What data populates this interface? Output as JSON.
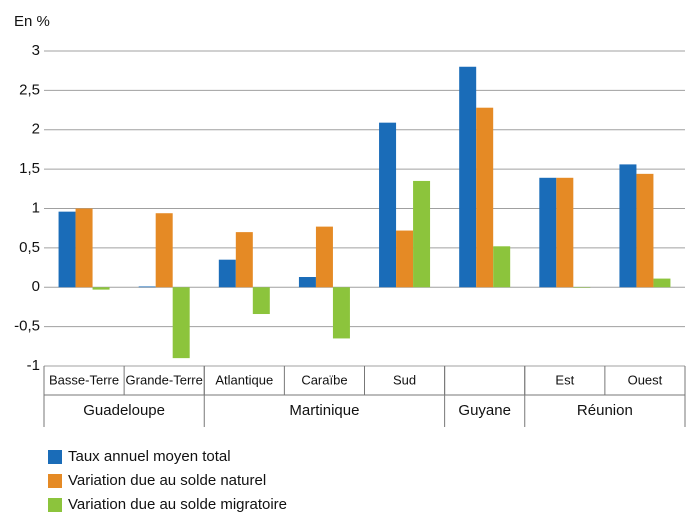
{
  "chart_data": {
    "type": "bar",
    "y_label": "En %",
    "categories": [
      "Basse-Terre",
      "Grande-Terre",
      "Atlantique",
      "Caraïbe",
      "Sud",
      null,
      "Est",
      "Ouest"
    ],
    "groups": [
      {
        "name": "Guadeloupe",
        "size": 2
      },
      {
        "name": "Martinique",
        "size": 3
      },
      {
        "name": "Guyane",
        "size": 1
      },
      {
        "name": "Réunion",
        "size": 2
      }
    ],
    "series": [
      {
        "name": "Taux annuel moyen total",
        "color": "#1a6cb8",
        "values": [
          0.96,
          0.01,
          0.35,
          0.13,
          2.09,
          2.8,
          1.39,
          1.56
        ]
      },
      {
        "name": "Variation due au solde naturel",
        "color": "#e58a25",
        "values": [
          1.0,
          0.94,
          0.7,
          0.77,
          0.72,
          2.28,
          1.39,
          1.44
        ]
      },
      {
        "name": "Variation due au solde migratoire",
        "color": "#8cc43c",
        "values": [
          -0.03,
          -0.9,
          -0.34,
          -0.65,
          1.35,
          0.52,
          0,
          0.11
        ]
      }
    ],
    "ylim": [
      -1,
      3
    ],
    "yticks": [
      -1,
      {
        "value": -0.5,
        "label": "-0,5"
      },
      0,
      {
        "value": 0.5,
        "label": "0,5"
      },
      1,
      {
        "value": 1.5,
        "label": "1,5"
      },
      2,
      {
        "value": 2.5,
        "label": "2,5"
      },
      3
    ],
    "grid": true
  }
}
